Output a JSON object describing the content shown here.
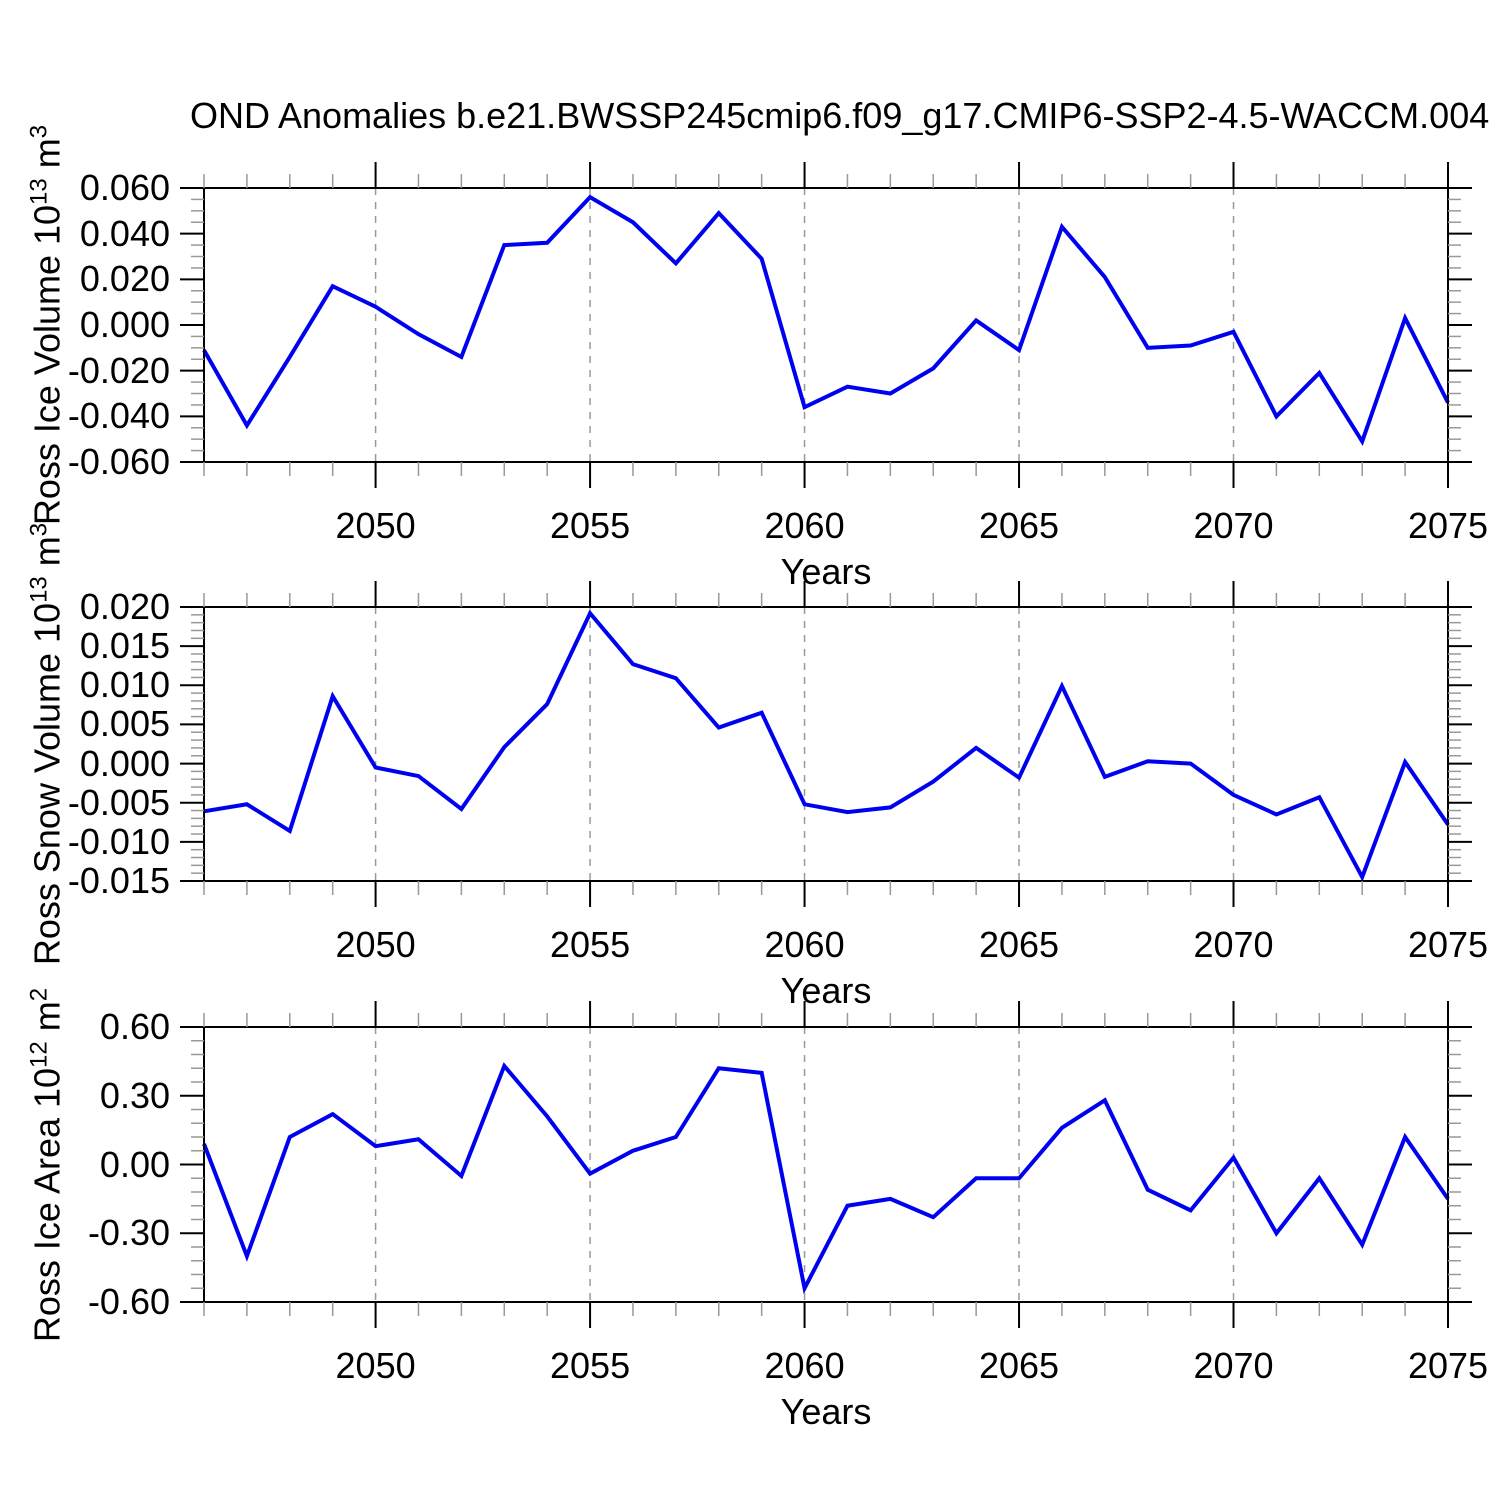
{
  "title": "OND Anomalies b.e21.BWSSP245cmip6.f09_g17.CMIP6-SSP2-4.5-WACCM.004",
  "xlabel": "Years",
  "xlim": [
    2046,
    2075
  ],
  "x_ticks": [
    2050,
    2055,
    2060,
    2065,
    2070,
    2075
  ],
  "grid_years": [
    2050,
    2055,
    2060,
    2065,
    2070
  ],
  "line_color": "#0000f0",
  "grid_color": "#999999",
  "minor_tick_color": "#999999",
  "frame_color": "#000000",
  "x": [
    2046,
    2047,
    2048,
    2049,
    2050,
    2051,
    2052,
    2053,
    2054,
    2055,
    2056,
    2057,
    2058,
    2059,
    2060,
    2061,
    2062,
    2063,
    2064,
    2065,
    2066,
    2067,
    2068,
    2069,
    2070,
    2071,
    2072,
    2073,
    2074,
    2075
  ],
  "chart_data": [
    {
      "type": "line",
      "name": "ross-ice-volume",
      "ylabel": {
        "main": "Ross Ice Volume 10",
        "sup1": "13",
        "mid": " m",
        "sup2": "3"
      },
      "ylim": [
        -0.06,
        0.06
      ],
      "y_minor_step": 0.005,
      "ytick_values": [
        0.06,
        0.04,
        0.02,
        0.0,
        -0.02,
        -0.04,
        -0.06
      ],
      "ytick_labels": [
        "0.060",
        "0.040",
        "0.020",
        "0.000",
        "-0.020",
        "-0.040",
        "-0.060"
      ],
      "values": [
        -0.011,
        -0.044,
        -0.014,
        0.017,
        0.008,
        -0.004,
        -0.014,
        0.035,
        0.036,
        0.056,
        0.045,
        0.027,
        0.049,
        0.029,
        -0.036,
        -0.027,
        -0.03,
        -0.019,
        0.002,
        -0.011,
        0.043,
        0.021,
        -0.01,
        -0.009,
        -0.003,
        -0.04,
        -0.021,
        -0.051,
        0.003,
        -0.034
      ]
    },
    {
      "type": "line",
      "name": "ross-snow-volume",
      "ylabel": {
        "main": "Ross Snow Volume 10",
        "sup1": "13",
        "mid": " m",
        "sup2": "3"
      },
      "ylim": [
        -0.015,
        0.02
      ],
      "y_minor_step": 0.001,
      "ytick_values": [
        0.02,
        0.015,
        0.01,
        0.005,
        0.0,
        -0.005,
        -0.01,
        -0.015
      ],
      "ytick_labels": [
        "0.020",
        "0.015",
        "0.010",
        "0.005",
        "0.000",
        "-0.005",
        "-0.010",
        "-0.015"
      ],
      "values": [
        -0.0061,
        -0.0052,
        -0.0086,
        0.0086,
        -0.0005,
        -0.0016,
        -0.0058,
        0.0021,
        0.0076,
        0.0192,
        0.0127,
        0.0109,
        0.0046,
        0.0065,
        -0.0052,
        -0.0062,
        -0.0056,
        -0.0023,
        0.002,
        -0.0018,
        0.0099,
        -0.0017,
        0.0003,
        0.0,
        -0.004,
        -0.0065,
        -0.0043,
        -0.0145,
        0.0002,
        -0.0078
      ]
    },
    {
      "type": "line",
      "name": "ross-ice-area",
      "ylabel": {
        "main": "Ross Ice Area 10",
        "sup1": "12",
        "mid": " m",
        "sup2": "2"
      },
      "ylim": [
        -0.6,
        0.6
      ],
      "y_minor_step": 0.06,
      "ytick_values": [
        0.6,
        0.3,
        0.0,
        -0.3,
        -0.6
      ],
      "ytick_labels": [
        "0.60",
        "0.30",
        "0.00",
        "-0.30",
        "-0.60"
      ],
      "values": [
        0.09,
        -0.4,
        0.12,
        0.22,
        0.08,
        0.11,
        -0.05,
        0.43,
        0.21,
        -0.04,
        0.06,
        0.12,
        0.42,
        0.4,
        -0.54,
        -0.18,
        -0.15,
        -0.23,
        -0.06,
        -0.06,
        0.16,
        0.28,
        -0.11,
        -0.2,
        0.03,
        -0.3,
        -0.06,
        -0.35,
        0.12,
        -0.15
      ]
    }
  ]
}
